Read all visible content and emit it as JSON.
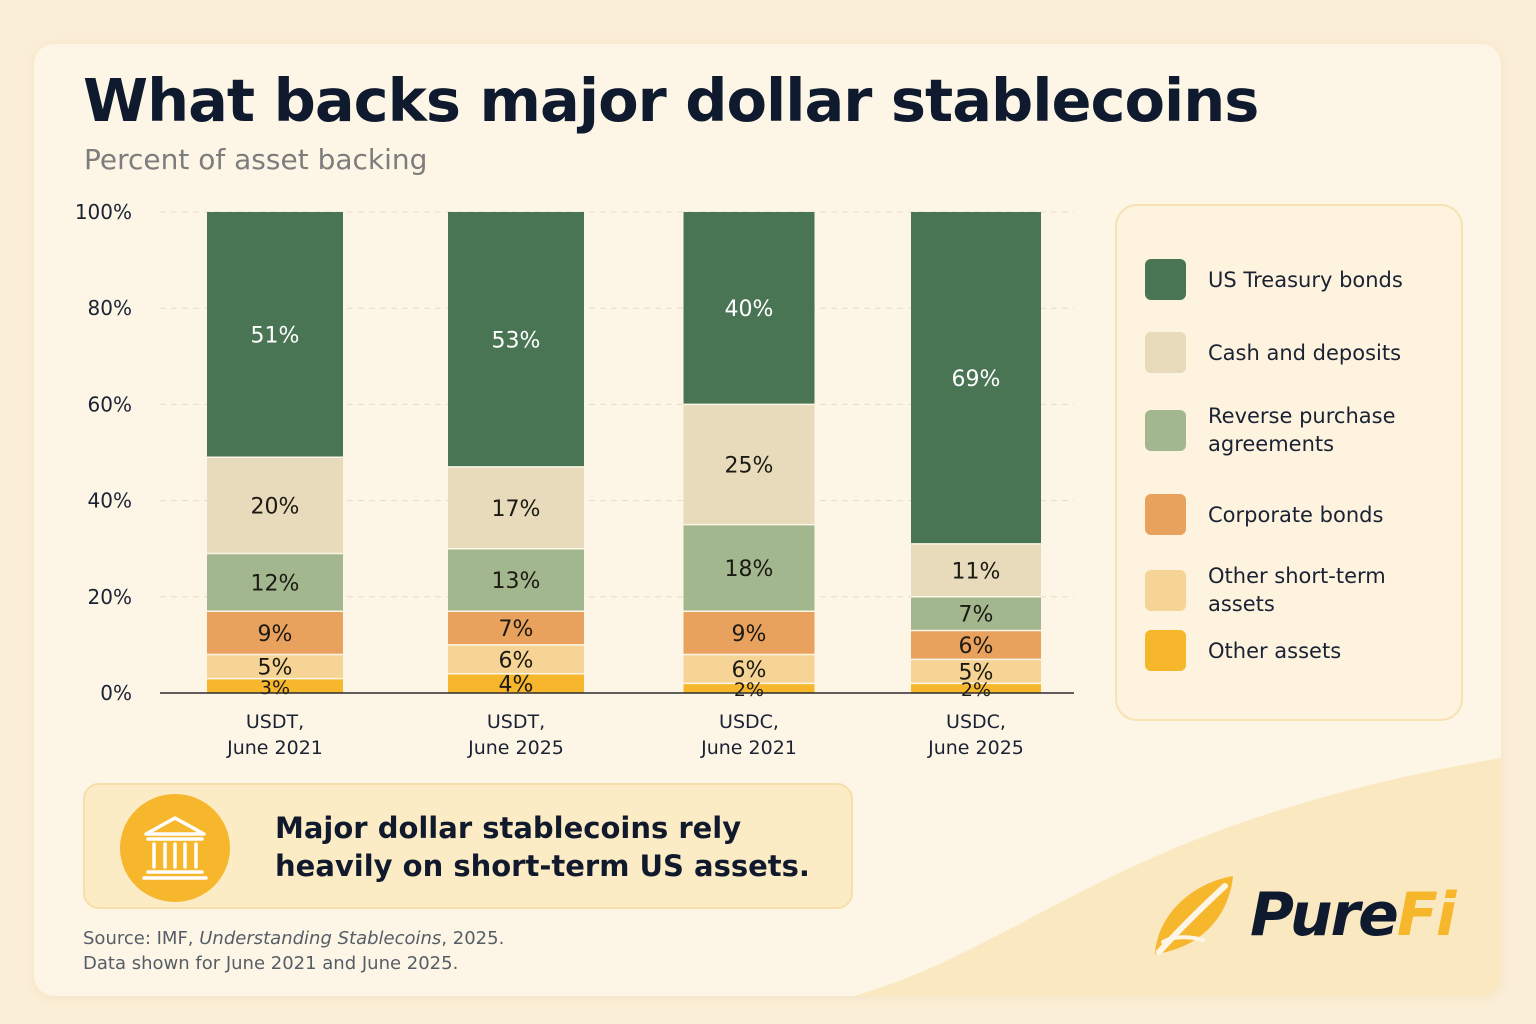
{
  "colors": {
    "us_treasury": "#4a7554",
    "cash": "#e7dbbb",
    "reverse_repo": "#a3b78e",
    "corporate": "#e9a25e",
    "other_short": "#f6d495",
    "other": "#f6b72c"
  },
  "callout": {
    "icon": "bank-icon",
    "text": "Major dollar stablecoins rely heavily on short-term US assets."
  },
  "source": {
    "prefix": "Source: IMF, ",
    "title": "Understanding Stablecoins",
    "suffix": ", 2025.",
    "note": "Data shown for June 2021 and June 2025."
  },
  "logo": {
    "icon": "leaf-icon",
    "part1": "Pure",
    "part2": "Fi"
  },
  "chart_data": {
    "type": "bar",
    "stacked": true,
    "title": "What backs major dollar stablecoins",
    "subtitle": "Percent of asset backing",
    "xlabel": "",
    "ylabel": "",
    "ylim": [
      0,
      100
    ],
    "yticks": [
      "0%",
      "20%",
      "40%",
      "60%",
      "80%",
      "100%"
    ],
    "grid": true,
    "legend_position": "right",
    "categories": [
      [
        "USDT,",
        "June 2021"
      ],
      [
        "USDT,",
        "June 2025"
      ],
      [
        "USDC,",
        "June 2021"
      ],
      [
        "USDC,",
        "June 2025"
      ]
    ],
    "series": [
      {
        "name": "Other assets",
        "color_key": "other",
        "values": [
          3,
          4,
          2,
          2
        ],
        "labels": [
          "3%",
          "4%",
          "2%",
          "2%"
        ]
      },
      {
        "name": "Other short-term assets",
        "color_key": "other_short",
        "values": [
          5,
          6,
          6,
          5
        ],
        "labels": [
          "5%",
          "6%",
          "6%",
          "5%"
        ]
      },
      {
        "name": "Corporate bonds",
        "color_key": "corporate",
        "values": [
          9,
          7,
          9,
          6
        ],
        "labels": [
          "9%",
          "7%",
          "9%",
          "6%"
        ]
      },
      {
        "name": "Reverse purchase agreements",
        "color_key": "reverse_repo",
        "values": [
          12,
          13,
          18,
          7
        ],
        "labels": [
          "12%",
          "13%",
          "18%",
          "7%"
        ]
      },
      {
        "name": "Cash and deposits",
        "color_key": "cash",
        "values": [
          20,
          17,
          25,
          11
        ],
        "labels": [
          "20%",
          "17%",
          "25%",
          "11%"
        ]
      },
      {
        "name": "US Treasury bonds",
        "color_key": "us_treasury",
        "values": [
          51,
          53,
          40,
          69
        ],
        "labels": [
          "51%",
          "53%",
          "40%",
          "69%"
        ]
      }
    ],
    "legend_order": [
      "US Treasury bonds",
      "Cash and deposits",
      "Reverse purchase agreements",
      "Corporate bonds",
      "Other short-term assets",
      "Other assets"
    ]
  }
}
